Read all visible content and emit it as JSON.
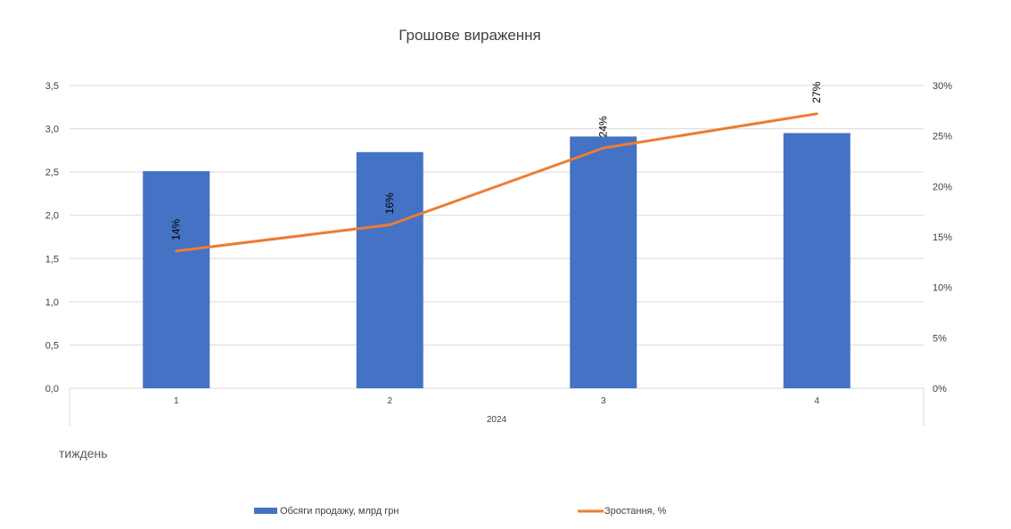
{
  "chart_data": {
    "type": "bar",
    "title": "Грошове вираження",
    "xlabel": "тиждень",
    "group_label": "2024",
    "categories": [
      "1",
      "2",
      "3",
      "4"
    ],
    "y_left": {
      "ticks": [
        "0,0",
        "0,5",
        "1,0",
        "1,5",
        "2,0",
        "2,5",
        "3,0",
        "3,5"
      ],
      "ylim": [
        0,
        3.5
      ]
    },
    "y_right": {
      "ticks": [
        "0%",
        "5%",
        "10%",
        "15%",
        "20%",
        "25%",
        "30%"
      ],
      "ylim": [
        0,
        30
      ]
    },
    "grid": true,
    "legend_position": "bottom",
    "series": [
      {
        "name": "Обсяги продажу, млрд грн",
        "type": "bar",
        "axis": "left",
        "color": "#4472C4",
        "values": [
          2.51,
          2.73,
          2.91,
          2.95
        ]
      },
      {
        "name": "Зростання, %",
        "type": "line",
        "axis": "right",
        "color": "#ED7D31",
        "values": [
          13.6,
          16.2,
          23.8,
          27.2
        ],
        "data_labels": [
          "14%",
          "16%",
          "24%",
          "27%"
        ]
      }
    ]
  }
}
